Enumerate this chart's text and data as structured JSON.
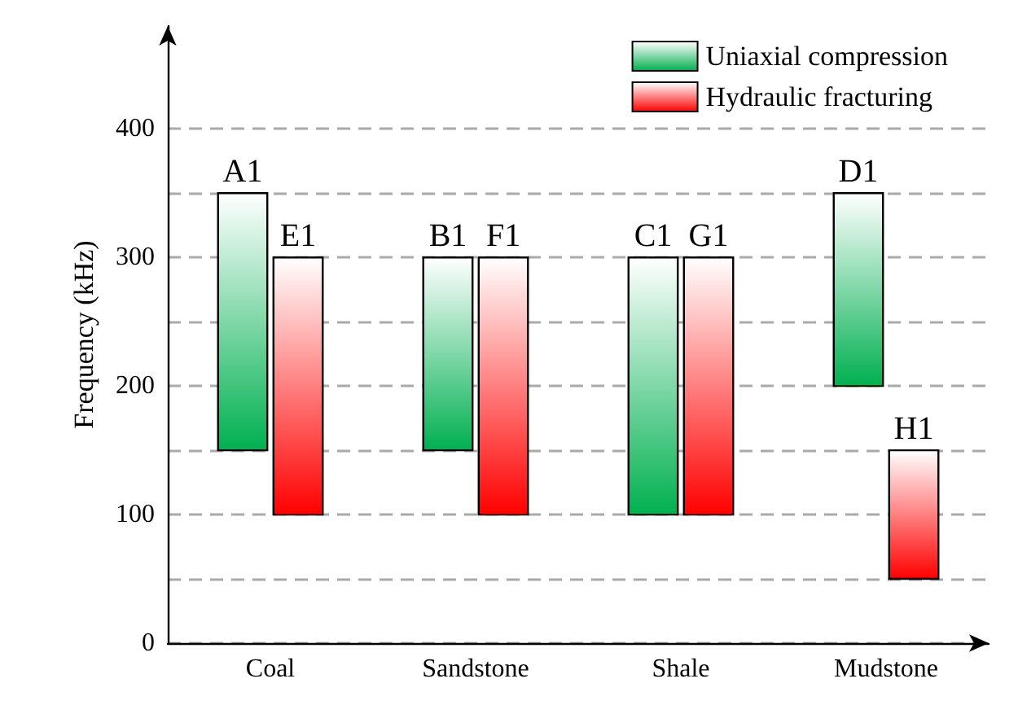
{
  "chart_data": {
    "type": "bar",
    "categories": [
      "Coal",
      "Sandstone",
      "Shale",
      "Mudstone"
    ],
    "series": [
      {
        "name": "Uniaxial compression",
        "color": "#00b050",
        "base": [
          150,
          150,
          100,
          200
        ],
        "values": [
          200,
          150,
          200,
          150
        ],
        "value_labels": [
          "A1",
          "B1",
          "C1",
          "D1"
        ]
      },
      {
        "name": "Hydraulic fracturing",
        "color": "#ff0000",
        "base": [
          100,
          100,
          100,
          50
        ],
        "values": [
          200,
          200,
          200,
          100
        ],
        "value_labels": [
          "E1",
          "F1",
          "G1",
          "H1"
        ]
      }
    ],
    "ylabel": "Frequency (kHz)",
    "ylim": [
      0,
      480
    ],
    "yticks": [
      0,
      {
        "value": 50,
        "label": null
      },
      100,
      {
        "value": 150,
        "label": null
      },
      200,
      {
        "value": 250,
        "label": null
      },
      300,
      {
        "value": 350,
        "label": null
      },
      400
    ],
    "grid": "y",
    "legend": "top right"
  }
}
